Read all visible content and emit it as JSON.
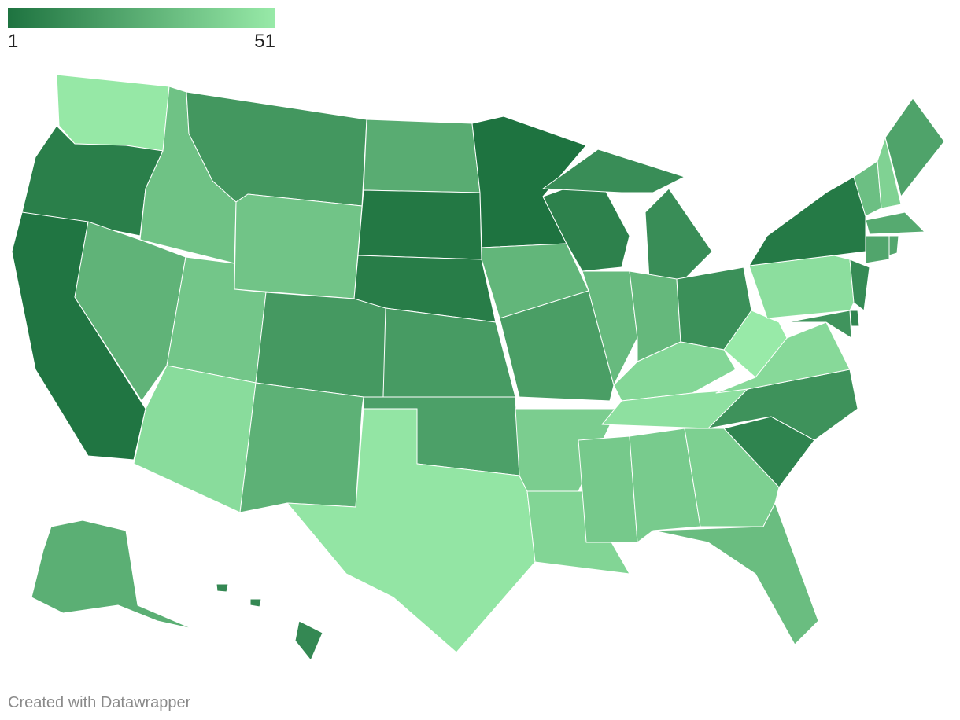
{
  "chart_data": {
    "type": "choropleth",
    "scale": {
      "min": 1,
      "max": 51,
      "colors": [
        "#1e7340",
        "#98eaa8"
      ]
    },
    "values": [
      50,
      6,
      2,
      34,
      28,
      16,
      35,
      36,
      45,
      17,
      27,
      25,
      3,
      5,
      18,
      20,
      49,
      1,
      29,
      19,
      39,
      42,
      7,
      31,
      12,
      30,
      13,
      43,
      47,
      37,
      38,
      40,
      32,
      8,
      14,
      44,
      51,
      46,
      4,
      33,
      41,
      21,
      24,
      22,
      23,
      11,
      9,
      15,
      26,
      10
    ],
    "footer": "Created with Datawrapper"
  }
}
